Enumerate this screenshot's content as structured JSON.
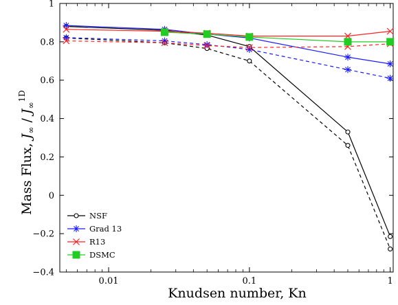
{
  "chart_data": {
    "type": "line",
    "xscale": "log",
    "xlim": [
      0.0045,
      1.05
    ],
    "ylim": [
      -0.4,
      1.0
    ],
    "xlabel": "Knudsen number, Kn",
    "ylabel": "Mass Flux, J∞ / J∞1D",
    "xticks": [
      {
        "value": 0.01,
        "label": "0.01"
      },
      {
        "value": 0.1,
        "label": "0.1"
      },
      {
        "value": 1,
        "label": "1"
      }
    ],
    "yticks": [
      {
        "value": -0.4,
        "label": "−0.4"
      },
      {
        "value": -0.2,
        "label": "−0.2"
      },
      {
        "value": 0,
        "label": "0"
      },
      {
        "value": 0.2,
        "label": "0.2"
      },
      {
        "value": 0.4,
        "label": "0.4"
      },
      {
        "value": 0.6,
        "label": "0.6"
      },
      {
        "value": 0.8,
        "label": "0.8"
      },
      {
        "value": 1,
        "label": "1"
      }
    ],
    "legend": {
      "position": "bottom-left",
      "entries": [
        {
          "name": "NSF",
          "color": "#000000",
          "marker": "circle"
        },
        {
          "name": "Grad 13",
          "color": "#1a1aff",
          "marker": "asterisk"
        },
        {
          "name": "R13",
          "color": "#ff2020",
          "marker": "cross"
        },
        {
          "name": "DSMC",
          "color": "#22cc22",
          "marker": "square"
        }
      ]
    },
    "series": [
      {
        "name": "NSF",
        "line": "solid",
        "color": "#000000",
        "marker": "circle",
        "x": [
          0.005,
          0.025,
          0.05,
          0.1,
          0.5,
          1
        ],
        "y": [
          0.88,
          0.86,
          0.835,
          0.775,
          0.33,
          -0.215
        ]
      },
      {
        "name": "NSF",
        "line": "dashed",
        "color": "#000000",
        "marker": "circle",
        "x": [
          0.005,
          0.025,
          0.05,
          0.1,
          0.5,
          1
        ],
        "y": [
          0.82,
          0.795,
          0.765,
          0.7,
          0.26,
          -0.28
        ]
      },
      {
        "name": "Grad 13",
        "line": "solid",
        "color": "#1a1aff",
        "marker": "asterisk",
        "x": [
          0.005,
          0.025,
          0.05,
          0.1,
          0.5,
          1
        ],
        "y": [
          0.885,
          0.865,
          0.84,
          0.82,
          0.72,
          0.685
        ]
      },
      {
        "name": "Grad 13",
        "line": "dashed",
        "color": "#1a1aff",
        "marker": "asterisk",
        "x": [
          0.005,
          0.025,
          0.05,
          0.1,
          0.5,
          1
        ],
        "y": [
          0.822,
          0.805,
          0.785,
          0.76,
          0.655,
          0.61
        ]
      },
      {
        "name": "R13",
        "line": "solid",
        "color": "#ff2020",
        "marker": "cross",
        "x": [
          0.005,
          0.025,
          0.05,
          0.1,
          0.5,
          1
        ],
        "y": [
          0.865,
          0.855,
          0.845,
          0.83,
          0.83,
          0.855
        ]
      },
      {
        "name": "R13",
        "line": "dashed",
        "color": "#ff2020",
        "marker": "cross",
        "x": [
          0.005,
          0.025,
          0.05,
          0.1,
          0.5,
          1
        ],
        "y": [
          0.805,
          0.795,
          0.78,
          0.77,
          0.775,
          0.79
        ]
      },
      {
        "name": "DSMC",
        "line": "solid",
        "color": "#22cc22",
        "marker": "square",
        "x": [
          0.025,
          0.05,
          0.1,
          0.5,
          1
        ],
        "y": [
          0.85,
          0.84,
          0.825,
          0.8,
          0.8
        ]
      }
    ]
  }
}
